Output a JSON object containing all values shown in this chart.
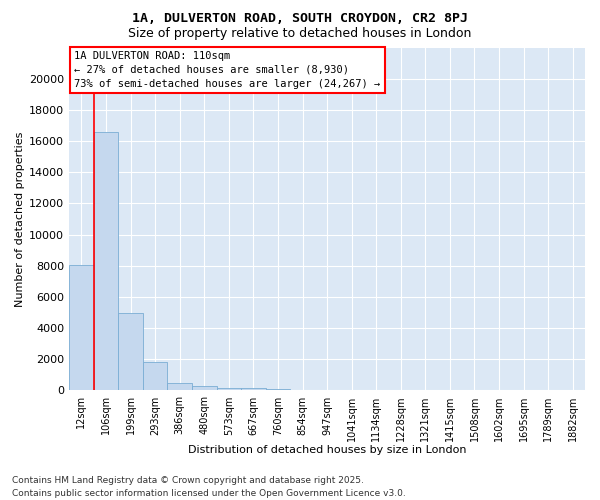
{
  "title_line1": "1A, DULVERTON ROAD, SOUTH CROYDON, CR2 8PJ",
  "title_line2": "Size of property relative to detached houses in London",
  "xlabel": "Distribution of detached houses by size in London",
  "ylabel": "Number of detached properties",
  "categories": [
    "12sqm",
    "106sqm",
    "199sqm",
    "293sqm",
    "386sqm",
    "480sqm",
    "573sqm",
    "667sqm",
    "760sqm",
    "854sqm",
    "947sqm",
    "1041sqm",
    "1134sqm",
    "1228sqm",
    "1321sqm",
    "1415sqm",
    "1508sqm",
    "1602sqm",
    "1695sqm",
    "1789sqm",
    "1882sqm"
  ],
  "values": [
    8050,
    16600,
    5000,
    1800,
    500,
    290,
    180,
    130,
    75,
    20,
    5,
    2,
    1,
    0,
    0,
    0,
    0,
    0,
    0,
    0,
    0
  ],
  "bar_color": "#c5d8ee",
  "bar_edgecolor": "#7aadd4",
  "background_color": "#dce8f5",
  "grid_color": "#f0f0ff",
  "annotation_line1": "1A DULVERTON ROAD: 110sqm",
  "annotation_line2": "← 27% of detached houses are smaller (8,930)",
  "annotation_line3": "73% of semi-detached houses are larger (24,267) →",
  "redline_bar_index": 1,
  "ylim_max": 22000,
  "yticks": [
    0,
    2000,
    4000,
    6000,
    8000,
    10000,
    12000,
    14000,
    16000,
    18000,
    20000
  ],
  "footer_line1": "Contains HM Land Registry data © Crown copyright and database right 2025.",
  "footer_line2": "Contains public sector information licensed under the Open Government Licence v3.0."
}
